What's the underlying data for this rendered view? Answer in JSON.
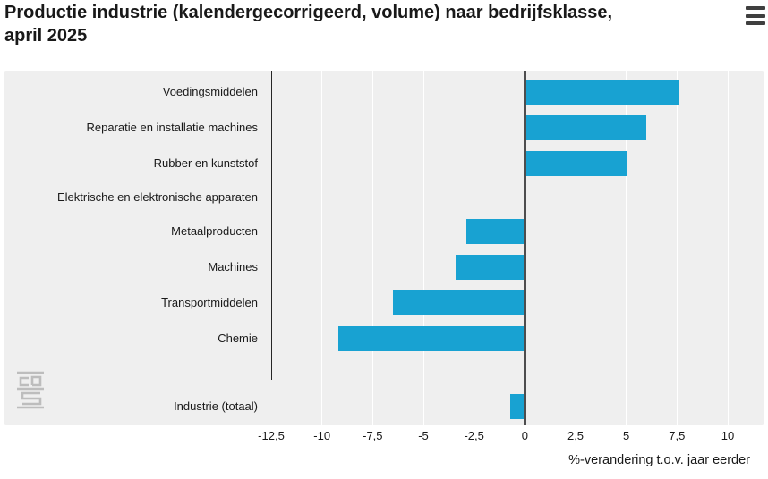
{
  "header": {
    "title": "Productie industrie (kalendergecorrigeerd, volume) naar bedrijfsklasse, april 2025"
  },
  "menu": {
    "icon": "hamburger-icon"
  },
  "chart_data": {
    "type": "bar",
    "orientation": "horizontal",
    "title": "Productie industrie (kalendergecorrigeerd, volume) naar bedrijfsklasse, april 2025",
    "categories": [
      "Voedingsmiddelen",
      "Reparatie en installatie machines",
      "Rubber en kunststof",
      "Elektrische en elektronische apparaten",
      "Metaalproducten",
      "Machines",
      "Transportmiddelen",
      "Chemie",
      "Industrie (totaal)"
    ],
    "values": [
      7.6,
      6.0,
      5.0,
      0.0,
      -2.9,
      -3.4,
      -6.5,
      -9.2,
      -0.7
    ],
    "xlabel": "%-verandering t.o.v. jaar eerder",
    "xlim": [
      -12.5,
      10
    ],
    "xticks": [
      -12.5,
      -10,
      -7.5,
      -5,
      -2.5,
      0,
      2.5,
      5,
      7.5,
      10
    ],
    "xtick_labels": [
      "-12,5",
      "-10",
      "-7,5",
      "-5",
      "-2,5",
      "0",
      "2,5",
      "5",
      "7,5",
      "10"
    ],
    "grid": true,
    "legend_position": "none",
    "separated_last_category": true,
    "bar_color": "#18a2d2",
    "panel_bg": "#efefef",
    "grid_color": "#ffffff",
    "zero_line_color": "#4d4d4e",
    "axis_line_color": "#262626",
    "logo_color": "#bdbdbd"
  },
  "branding": {
    "logo": "cbs-logo"
  }
}
